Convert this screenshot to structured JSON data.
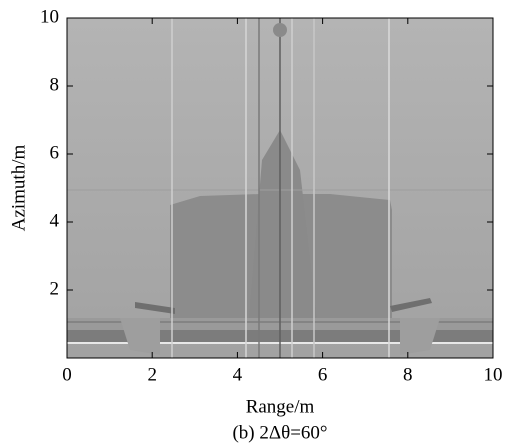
{
  "chart_data": {
    "type": "image",
    "caption": "(b) 2Δθ=60°",
    "x_label": "Range/m",
    "y_label": "Azimuth/m",
    "xlim": [
      0,
      10
    ],
    "ylim": [
      0,
      10
    ],
    "xticks": [
      0,
      2,
      4,
      6,
      8,
      10
    ],
    "yticks": [
      2,
      4,
      6,
      8,
      10
    ]
  }
}
